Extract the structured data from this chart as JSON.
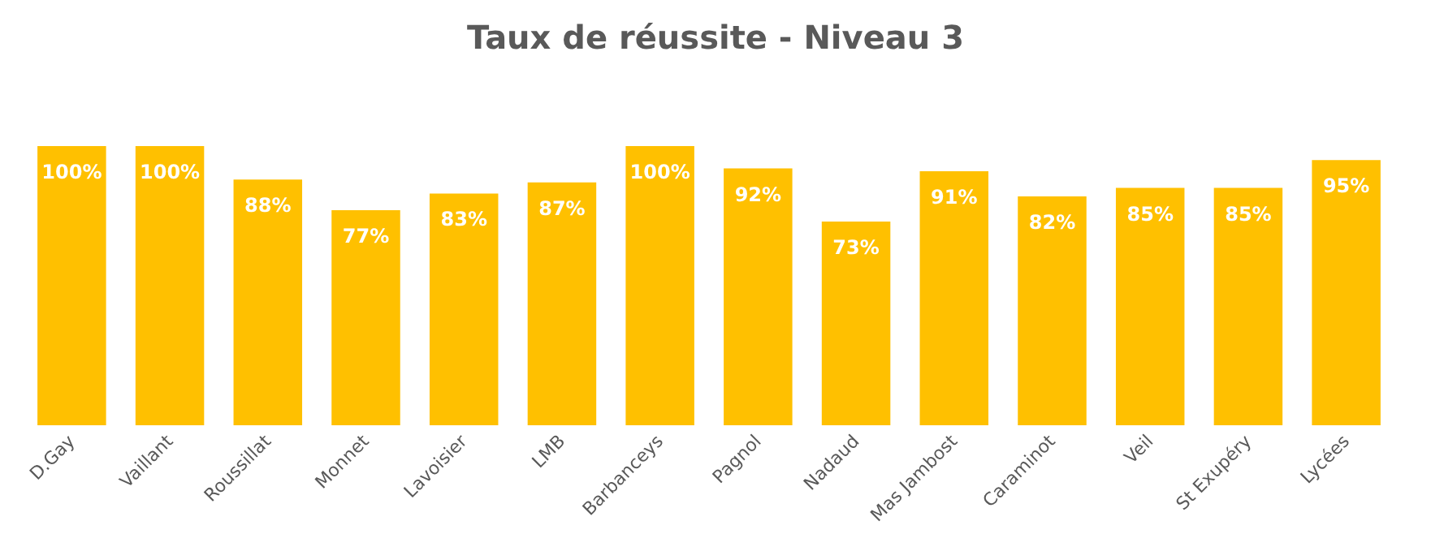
{
  "chart_data": {
    "type": "bar",
    "title": "Taux de réussite - Niveau 3",
    "categories": [
      "D.Gay",
      "Vaillant",
      "Roussillat",
      "Monnet",
      "Lavoisier",
      "LMB",
      "Barbanceys",
      "Pagnol",
      "Nadaud",
      "Mas Jambost",
      "Caraminot",
      "Veil",
      "St Exupéry",
      "Lycées"
    ],
    "values": [
      100,
      100,
      88,
      77,
      83,
      87,
      100,
      92,
      73,
      91,
      82,
      85,
      85,
      95
    ],
    "value_labels": [
      "100%",
      "100%",
      "88%",
      "77%",
      "83%",
      "87%",
      "100%",
      "92%",
      "73%",
      "91%",
      "82%",
      "85%",
      "85%",
      "95%"
    ],
    "color": "#ffc000",
    "tick_labels": "x"
  }
}
